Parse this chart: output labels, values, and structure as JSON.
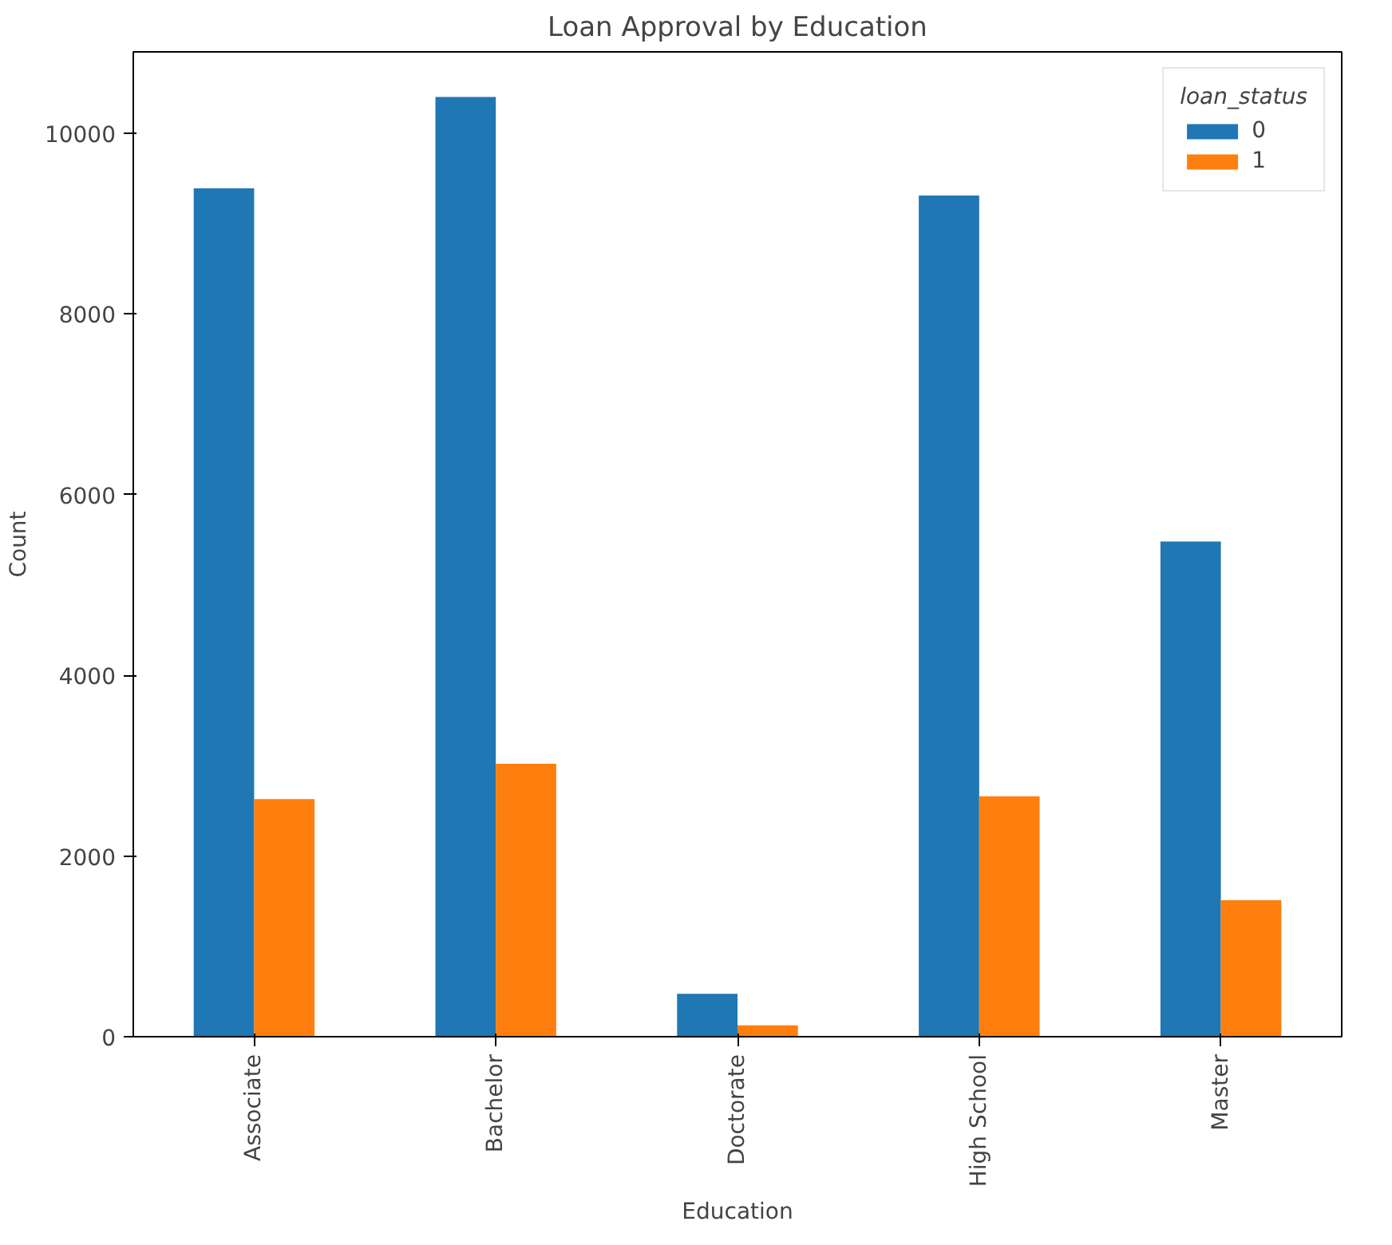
{
  "chart_data": {
    "type": "bar",
    "title": "Loan Approval by Education",
    "xlabel": "Education",
    "ylabel": "Count",
    "legend_title": "loan_status",
    "categories": [
      "Associate",
      "Bachelor",
      "Doctorate",
      "High School",
      "Master"
    ],
    "series": [
      {
        "name": "0",
        "color": "#1f77b4",
        "values": [
          9390,
          10400,
          475,
          9310,
          5480
        ]
      },
      {
        "name": "1",
        "color": "#ff7f0e",
        "values": [
          2630,
          3020,
          125,
          2660,
          1510
        ]
      }
    ],
    "ylim": [
      0,
      10900
    ],
    "yticks": [
      0,
      2000,
      4000,
      6000,
      8000,
      10000
    ],
    "grid": false,
    "legend": "top right"
  }
}
